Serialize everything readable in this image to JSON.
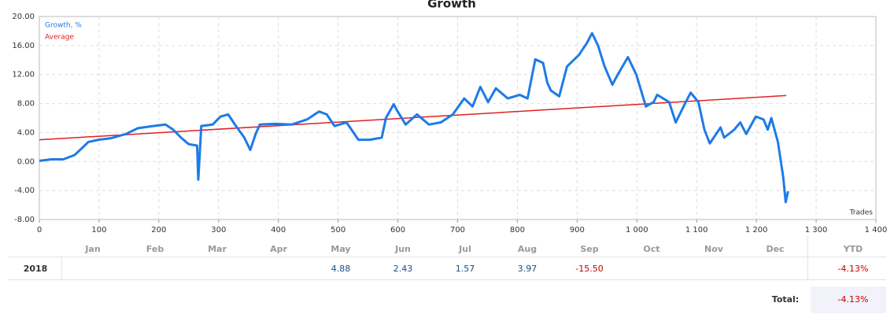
{
  "chart_data": {
    "type": "line",
    "title": "Growth",
    "x_label": "Trades",
    "xlim": [
      0,
      1400
    ],
    "xticks": [
      0,
      100,
      200,
      300,
      400,
      500,
      600,
      700,
      800,
      900,
      {
        "value": 1000,
        "label": "1 000"
      },
      {
        "value": 1100,
        "label": "1 100"
      },
      {
        "value": 1200,
        "label": "1 200"
      },
      {
        "value": 1300,
        "label": "1 300"
      },
      {
        "value": 1400,
        "label": "1 400"
      }
    ],
    "ylim": [
      -8,
      20
    ],
    "yticks": [
      {
        "value": -8,
        "label": "-8.00"
      },
      {
        "value": -4,
        "label": "-4.00"
      },
      {
        "value": 0,
        "label": "0.00"
      },
      {
        "value": 4,
        "label": "4.00"
      },
      {
        "value": 8,
        "label": "8.00"
      },
      {
        "value": 12,
        "label": "12.00"
      },
      {
        "value": 16,
        "label": "16.00"
      },
      {
        "value": 20,
        "label": "20.00"
      }
    ],
    "grid": true,
    "series": [
      {
        "name": "Growth, %",
        "color": "#1e7be6",
        "x": [
          0,
          20,
          40,
          59,
          72,
          82,
          99,
          119,
          145,
          165,
          191,
          211,
          224,
          237,
          250,
          264,
          266,
          271,
          290,
          303,
          316,
          329,
          343,
          353,
          362,
          369,
          395,
          422,
          448,
          468,
          481,
          494,
          514,
          534,
          553,
          573,
          580,
          593,
          599,
          613,
          632,
          652,
          672,
          692,
          711,
          725,
          738,
          751,
          764,
          784,
          804,
          817,
          830,
          843,
          850,
          856,
          870,
          883,
          903,
          916,
          925,
          935,
          946,
          959,
          968,
          985,
          999,
          1015,
          1028,
          1034,
          1054,
          1065,
          1080,
          1090,
          1103,
          1113,
          1122,
          1140,
          1146,
          1163,
          1173,
          1183,
          1199,
          1212,
          1219,
          1225,
          1236,
          1245,
          1249,
          1253
        ],
        "values": [
          0.1,
          0.3,
          0.3,
          0.9,
          1.9,
          2.7,
          3.0,
          3.2,
          3.8,
          4.6,
          4.9,
          5.1,
          4.4,
          3.3,
          2.4,
          2.2,
          -2.5,
          4.9,
          5.1,
          6.2,
          6.5,
          4.9,
          3.3,
          1.6,
          3.8,
          5.1,
          5.2,
          5.1,
          5.8,
          6.9,
          6.5,
          4.9,
          5.4,
          3.0,
          3.0,
          3.3,
          6.0,
          7.9,
          7.0,
          5.1,
          6.5,
          5.1,
          5.4,
          6.5,
          8.7,
          7.6,
          10.3,
          8.2,
          10.1,
          8.7,
          9.2,
          8.7,
          14.1,
          13.6,
          10.9,
          9.8,
          9.0,
          13.1,
          14.7,
          16.3,
          17.7,
          16.0,
          13.1,
          10.6,
          12.0,
          14.4,
          12.0,
          7.6,
          8.2,
          9.2,
          8.2,
          5.4,
          7.9,
          9.5,
          8.2,
          4.4,
          2.5,
          4.7,
          3.3,
          4.4,
          5.4,
          3.8,
          6.2,
          5.8,
          4.4,
          6.0,
          2.7,
          -2.2,
          -5.6,
          -4.1
        ]
      },
      {
        "name": "Average",
        "color": "#e02020",
        "x": [
          0,
          1250
        ],
        "values": [
          3.0,
          9.1
        ]
      }
    ]
  },
  "table": {
    "months": [
      "Jan",
      "Feb",
      "Mar",
      "Apr",
      "May",
      "Jun",
      "Jul",
      "Aug",
      "Sep",
      "Oct",
      "Nov",
      "Dec"
    ],
    "ytd_header": "YTD",
    "rows": [
      {
        "year": "2018",
        "values": [
          null,
          null,
          null,
          null,
          "4.88",
          "2.43",
          "1.57",
          "3.97",
          "-15.50",
          null,
          null,
          null
        ],
        "ytd": "-4.13%"
      }
    ],
    "total_label": "Total:",
    "total": "-4.13%"
  }
}
